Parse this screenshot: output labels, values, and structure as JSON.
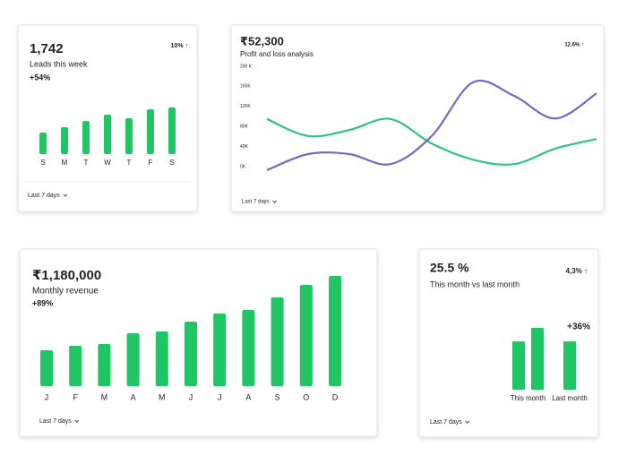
{
  "chart_data": [
    {
      "type": "bar",
      "value": "1,742",
      "subtitle": "Leads this week",
      "change": "+54%",
      "badge": "10% ↑",
      "footer": "Last 7 days",
      "categories": [
        "S",
        "M",
        "T",
        "W",
        "T",
        "F",
        "S"
      ],
      "values": [
        24,
        30,
        37,
        44,
        40,
        50,
        52
      ],
      "color": "#20c663"
    },
    {
      "type": "line",
      "value": "₹52,300",
      "subtitle": "Profit and loss analysis",
      "badge": "12.6% ↑",
      "footer": "Last 7 days",
      "ylim": [
        0,
        200000
      ],
      "yticks": [
        {
          "value": 200000,
          "label": "200 K"
        },
        {
          "value": 160000,
          "label": "160K"
        },
        {
          "value": 120000,
          "label": "120K"
        },
        {
          "value": 80000,
          "label": "80K"
        },
        {
          "value": 40000,
          "label": "40K"
        },
        {
          "value": 0,
          "label": "0K"
        }
      ],
      "series": [
        {
          "color": "#2cc487",
          "values": [
            95000,
            61000,
            73000,
            95000,
            46000,
            14000,
            5000,
            36000,
            55000
          ]
        },
        {
          "color": "#7b67c2",
          "values": [
            -7000,
            25000,
            25000,
            5000,
            61000,
            168000,
            141000,
            96000,
            146000
          ]
        }
      ]
    },
    {
      "type": "bar",
      "value": "₹1,180,000",
      "subtitle": "Monthly revenue",
      "change": "+89%",
      "footer": "Last 7 days",
      "categories": [
        "J",
        "F",
        "M",
        "A",
        "M",
        "J",
        "J",
        "A",
        "S",
        "O",
        "D"
      ],
      "values": [
        40,
        45,
        47,
        59,
        61,
        72,
        81,
        85,
        99,
        113,
        123
      ],
      "color": "#20c663"
    },
    {
      "type": "groupbar",
      "value": "25.5 %",
      "subtitle": "This month vs last month",
      "change": "+36%",
      "badge": "4,3% ↑",
      "footer": "Last 7 days",
      "categories": [
        "This month",
        "Last month"
      ],
      "values": [
        [
          54,
          69
        ],
        [
          54
        ]
      ],
      "color": "#20c663"
    }
  ]
}
